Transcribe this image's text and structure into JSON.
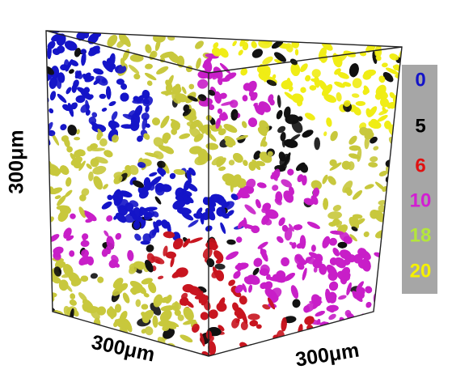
{
  "figure": {
    "dimension_labels": {
      "vertical": "300μm",
      "bottom_left": "300μm",
      "bottom_right": "300μm"
    },
    "legend": [
      {
        "label": 0,
        "color": "#1414c8"
      },
      {
        "label": 5,
        "color": "#000000"
      },
      {
        "label": 6,
        "color": "#e01010"
      },
      {
        "label": 10,
        "color": "#d21ed2"
      },
      {
        "label": 18,
        "color": "#b4e63c"
      },
      {
        "label": 20,
        "color": "#f5f000"
      }
    ],
    "render_colors": [
      "#1414c8",
      "#111111",
      "#c8141e",
      "#c81ec8",
      "#c8c83c",
      "#f0ec14"
    ]
  }
}
